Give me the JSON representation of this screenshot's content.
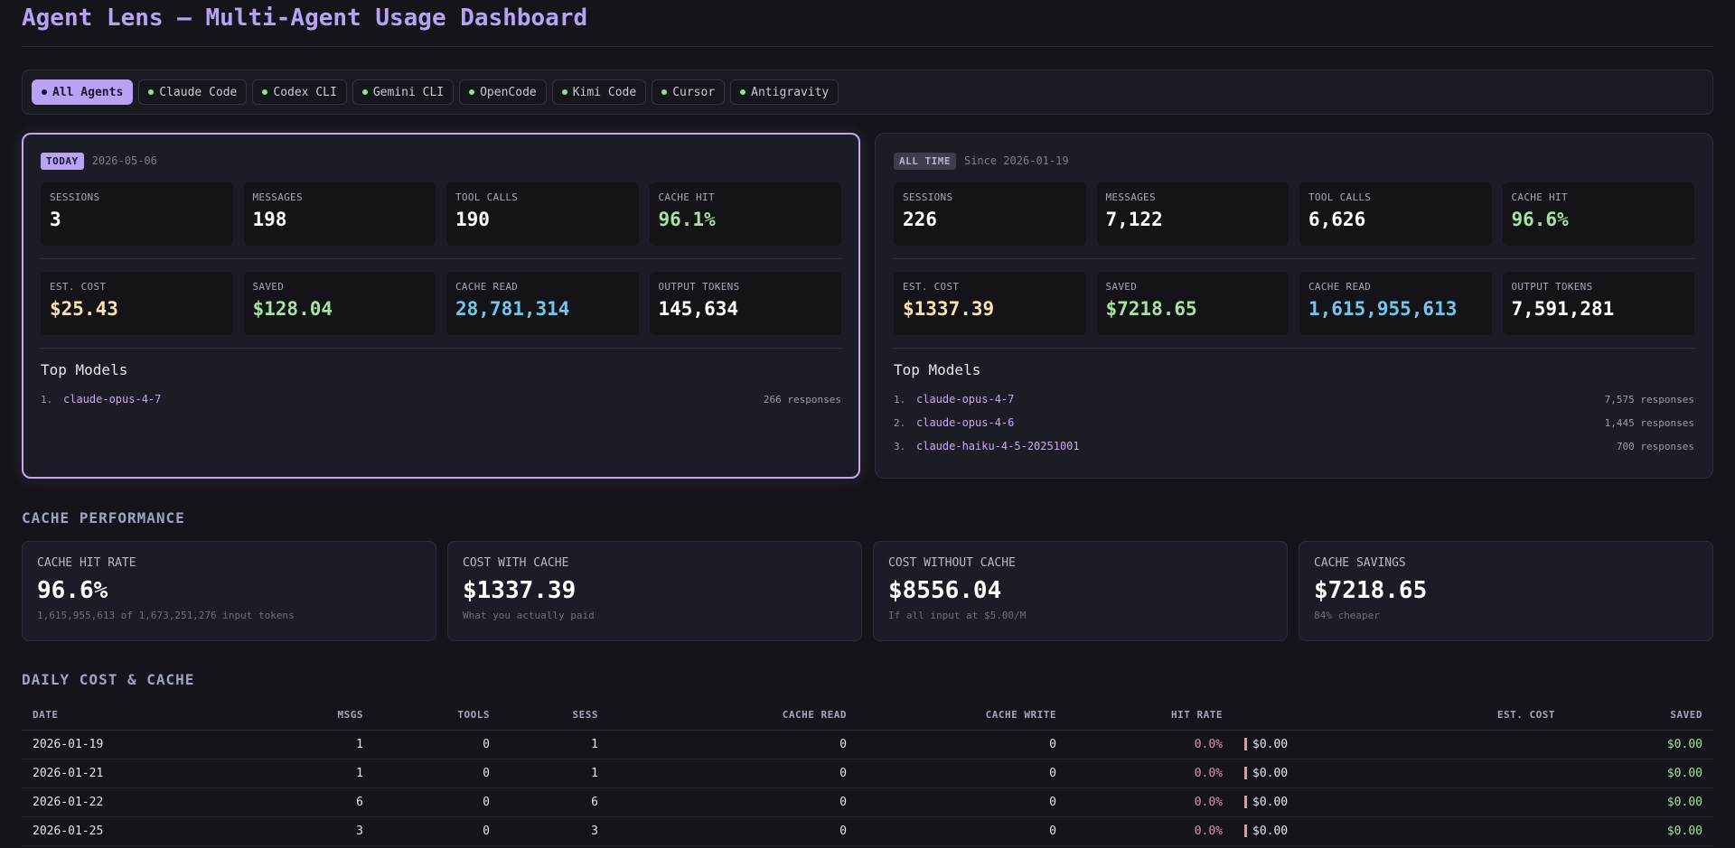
{
  "header": {
    "title": "Agent Lens — Multi-Agent Usage Dashboard"
  },
  "agents": [
    {
      "label": "All Agents",
      "active": true
    },
    {
      "label": "Claude Code",
      "active": false
    },
    {
      "label": "Codex CLI",
      "active": false
    },
    {
      "label": "Gemini CLI",
      "active": false
    },
    {
      "label": "OpenCode",
      "active": false
    },
    {
      "label": "Kimi Code",
      "active": false
    },
    {
      "label": "Cursor",
      "active": false
    },
    {
      "label": "Antigravity",
      "active": false
    }
  ],
  "today": {
    "badge": "TODAY",
    "date": "2026-05-06",
    "stats_row1": [
      {
        "label": "SESSIONS",
        "value": "3"
      },
      {
        "label": "MESSAGES",
        "value": "198"
      },
      {
        "label": "TOOL CALLS",
        "value": "190"
      },
      {
        "label": "CACHE HIT",
        "value": "96.1%"
      }
    ],
    "stats_row2": [
      {
        "label": "EST. COST",
        "value": "$25.43"
      },
      {
        "label": "SAVED",
        "value": "$128.04"
      },
      {
        "label": "CACHE READ",
        "value": "28,781,314"
      },
      {
        "label": "OUTPUT TOKENS",
        "value": "145,634"
      }
    ],
    "top_models_title": "Top Models",
    "models": [
      {
        "rank": "1.",
        "name": "claude-opus-4-7",
        "responses": "266 responses"
      }
    ]
  },
  "all_time": {
    "badge": "ALL TIME",
    "date": "Since 2026-01-19",
    "stats_row1": [
      {
        "label": "SESSIONS",
        "value": "226"
      },
      {
        "label": "MESSAGES",
        "value": "7,122"
      },
      {
        "label": "TOOL CALLS",
        "value": "6,626"
      },
      {
        "label": "CACHE HIT",
        "value": "96.6%"
      }
    ],
    "stats_row2": [
      {
        "label": "EST. COST",
        "value": "$1337.39"
      },
      {
        "label": "SAVED",
        "value": "$7218.65"
      },
      {
        "label": "CACHE READ",
        "value": "1,615,955,613"
      },
      {
        "label": "OUTPUT TOKENS",
        "value": "7,591,281"
      }
    ],
    "top_models_title": "Top Models",
    "models": [
      {
        "rank": "1.",
        "name": "claude-opus-4-7",
        "responses": "7,575 responses"
      },
      {
        "rank": "2.",
        "name": "claude-opus-4-6",
        "responses": "1,445 responses"
      },
      {
        "rank": "3.",
        "name": "claude-haiku-4-5-20251001",
        "responses": "700 responses"
      }
    ]
  },
  "cache_performance": {
    "title": "CACHE PERFORMANCE",
    "cards": [
      {
        "label": "CACHE HIT RATE",
        "value": "96.6%",
        "sub": "1,615,955,613 of 1,673,251,276 input tokens"
      },
      {
        "label": "COST WITH CACHE",
        "value": "$1337.39",
        "sub": "What you actually paid"
      },
      {
        "label": "COST WITHOUT CACHE",
        "value": "$8556.04",
        "sub": "If all input at $5.00/M"
      },
      {
        "label": "CACHE SAVINGS",
        "value": "$7218.65",
        "sub": "84% cheaper"
      }
    ]
  },
  "daily": {
    "title": "DAILY COST & CACHE",
    "columns": [
      "DATE",
      "MSGS",
      "TOOLS",
      "SESS",
      "CACHE READ",
      "CACHE WRITE",
      "HIT RATE",
      "EST. COST",
      "SAVED"
    ],
    "rows": [
      [
        "2026-01-19",
        "1",
        "0",
        "1",
        "0",
        "0",
        "0.0%",
        "$0.00",
        "$0.00"
      ],
      [
        "2026-01-21",
        "1",
        "0",
        "1",
        "0",
        "0",
        "0.0%",
        "$0.00",
        "$0.00"
      ],
      [
        "2026-01-22",
        "6",
        "0",
        "6",
        "0",
        "0",
        "0.0%",
        "$0.00",
        "$0.00"
      ],
      [
        "2026-01-25",
        "3",
        "0",
        "3",
        "0",
        "0",
        "0.0%",
        "$0.00",
        "$0.00"
      ]
    ]
  },
  "colors": {
    "accent": "#b8a2f5",
    "green": "#a6e3a1",
    "yellow": "#f9e2af",
    "blue": "#74c7ec",
    "red": "#f38ba8"
  }
}
